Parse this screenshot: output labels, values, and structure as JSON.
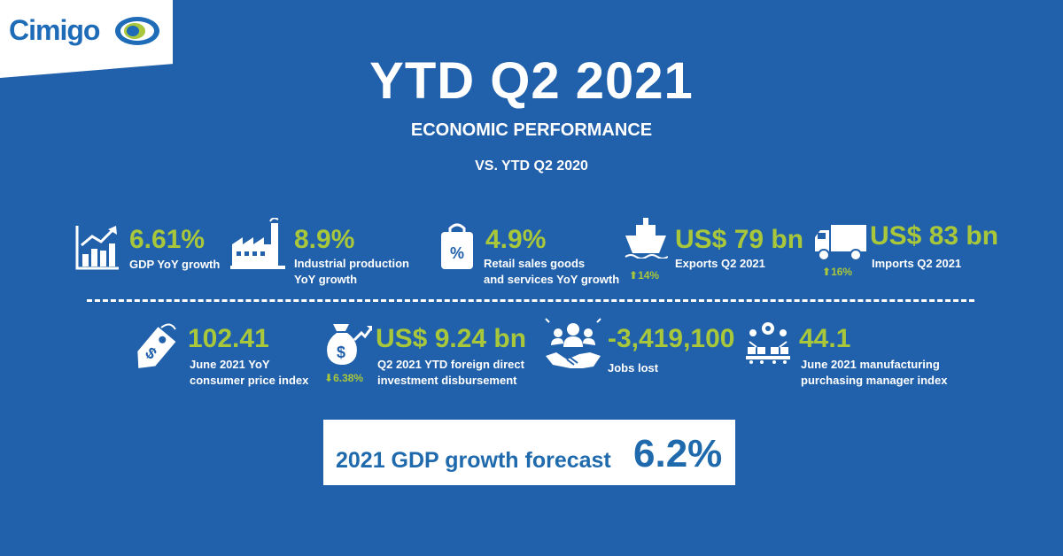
{
  "brand": {
    "name": "Cimigo",
    "colors": {
      "background": "#2160aa",
      "accent": "#a8c73a",
      "forecast_text": "#1f6aad"
    }
  },
  "header": {
    "title": "YTD Q2 2021",
    "subtitle": "ECONOMIC PERFORMANCE",
    "comparison": "VS. YTD Q2 2020"
  },
  "row1": [
    {
      "icon": "growth-chart-icon",
      "value": "6.61%",
      "label": [
        "GDP YoY growth"
      ]
    },
    {
      "icon": "factory-icon",
      "value": "8.9%",
      "label": [
        "Industrial production",
        "YoY growth"
      ]
    },
    {
      "icon": "shopping-bag-icon",
      "value": "4.9%",
      "label": [
        "Retail sales goods",
        "and services YoY growth"
      ]
    },
    {
      "icon": "ship-icon",
      "value": "US$ 79 bn",
      "label": [
        "Exports Q2 2021"
      ],
      "change": "14%",
      "change_dir": "up"
    },
    {
      "icon": "truck-icon",
      "value": "US$ 83 bn",
      "label": [
        "Imports Q2 2021"
      ],
      "change": "16%",
      "change_dir": "up"
    }
  ],
  "row2": [
    {
      "icon": "price-tag-icon",
      "value": "102.41",
      "label": [
        "June 2021 YoY",
        "consumer price index"
      ]
    },
    {
      "icon": "money-bag-icon",
      "value": "US$ 9.24 bn",
      "label": [
        "Q2 2021 YTD foreign direct",
        "investment disbursement"
      ],
      "change": "6.38%",
      "change_dir": "down"
    },
    {
      "icon": "handshake-people-icon",
      "value": "-3,419,100",
      "label": [
        "Jobs lost"
      ]
    },
    {
      "icon": "manufacturing-icon",
      "value": "44.1",
      "label": [
        "June 2021 manufacturing",
        "purchasing manager index"
      ]
    }
  ],
  "forecast": {
    "label": "2021 GDP growth forecast",
    "value": "6.2%"
  }
}
